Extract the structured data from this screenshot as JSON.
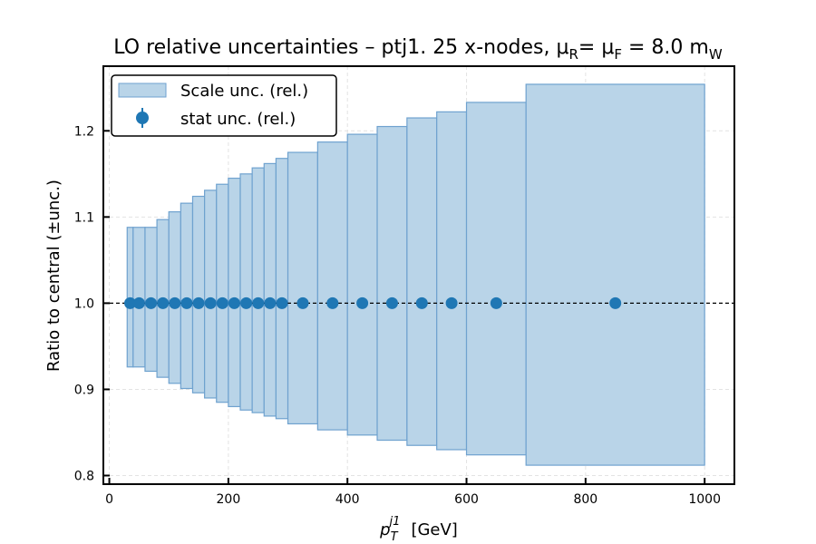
{
  "chart_data": {
    "type": "bar",
    "title_main": "LO relative uncertainties  –  ptj1. 25 x-nodes, μ",
    "title_sub_r": "R",
    "title_mid": "= μ",
    "title_sub_f": "F",
    "title_end": " = 8.0 m",
    "title_sub_w": "W",
    "xlabel_sym": "p",
    "xlabel_sub": "T",
    "xlabel_sup": "j1",
    "xlabel_unit": "[GeV]",
    "ylabel": "Ratio to central (±unc.)",
    "xlim": [
      -10,
      1050
    ],
    "ylim": [
      0.79,
      1.275
    ],
    "x_ticks": [
      "0",
      "200",
      "400",
      "600",
      "800",
      "1000"
    ],
    "x_tick_values": [
      0,
      200,
      400,
      600,
      800,
      1000
    ],
    "y_ticks": [
      "0.8",
      "0.9",
      "1.0",
      "1.1",
      "1.2"
    ],
    "y_tick_values": [
      0.8,
      0.9,
      1.0,
      1.1,
      1.2
    ],
    "grid": true,
    "reference_line": 1.0,
    "legend_position": "top-left",
    "colors": {
      "band_fill": "#b9d4e8",
      "band_edge": "#6fa2cf",
      "points": "#1f77b4"
    },
    "series": [
      {
        "name": "Scale unc. (rel.)",
        "kind": "band",
        "bins": [
          {
            "lo": 30,
            "hi": 40,
            "up": 1.088,
            "down": 0.926
          },
          {
            "lo": 40,
            "hi": 60,
            "up": 1.088,
            "down": 0.926
          },
          {
            "lo": 60,
            "hi": 80,
            "up": 1.088,
            "down": 0.921
          },
          {
            "lo": 80,
            "hi": 100,
            "up": 1.097,
            "down": 0.914
          },
          {
            "lo": 100,
            "hi": 120,
            "up": 1.106,
            "down": 0.907
          },
          {
            "lo": 120,
            "hi": 140,
            "up": 1.116,
            "down": 0.901
          },
          {
            "lo": 140,
            "hi": 160,
            "up": 1.124,
            "down": 0.896
          },
          {
            "lo": 160,
            "hi": 180,
            "up": 1.131,
            "down": 0.89
          },
          {
            "lo": 180,
            "hi": 200,
            "up": 1.138,
            "down": 0.885
          },
          {
            "lo": 200,
            "hi": 220,
            "up": 1.145,
            "down": 0.88
          },
          {
            "lo": 220,
            "hi": 240,
            "up": 1.15,
            "down": 0.876
          },
          {
            "lo": 240,
            "hi": 260,
            "up": 1.157,
            "down": 0.873
          },
          {
            "lo": 260,
            "hi": 280,
            "up": 1.162,
            "down": 0.869
          },
          {
            "lo": 280,
            "hi": 300,
            "up": 1.168,
            "down": 0.866
          },
          {
            "lo": 300,
            "hi": 350,
            "up": 1.175,
            "down": 0.86
          },
          {
            "lo": 350,
            "hi": 400,
            "up": 1.187,
            "down": 0.853
          },
          {
            "lo": 400,
            "hi": 450,
            "up": 1.196,
            "down": 0.847
          },
          {
            "lo": 450,
            "hi": 500,
            "up": 1.205,
            "down": 0.841
          },
          {
            "lo": 500,
            "hi": 550,
            "up": 1.215,
            "down": 0.835
          },
          {
            "lo": 550,
            "hi": 600,
            "up": 1.222,
            "down": 0.83
          },
          {
            "lo": 600,
            "hi": 700,
            "up": 1.233,
            "down": 0.824
          },
          {
            "lo": 700,
            "hi": 1000,
            "up": 1.254,
            "down": 0.812
          }
        ]
      },
      {
        "name": "stat unc. (rel.)",
        "kind": "points",
        "x": [
          35,
          50,
          70,
          90,
          110,
          130,
          150,
          170,
          190,
          210,
          230,
          250,
          270,
          290,
          325,
          375,
          425,
          475,
          525,
          575,
          650,
          850
        ],
        "y": [
          1.0,
          1.0,
          1.0,
          1.0,
          1.0,
          1.0,
          1.0,
          1.0,
          1.0,
          1.0,
          1.0,
          1.0,
          1.0,
          1.0,
          1.0,
          1.0,
          1.0,
          1.0,
          1.0,
          1.0,
          1.0,
          1.0
        ]
      }
    ]
  }
}
